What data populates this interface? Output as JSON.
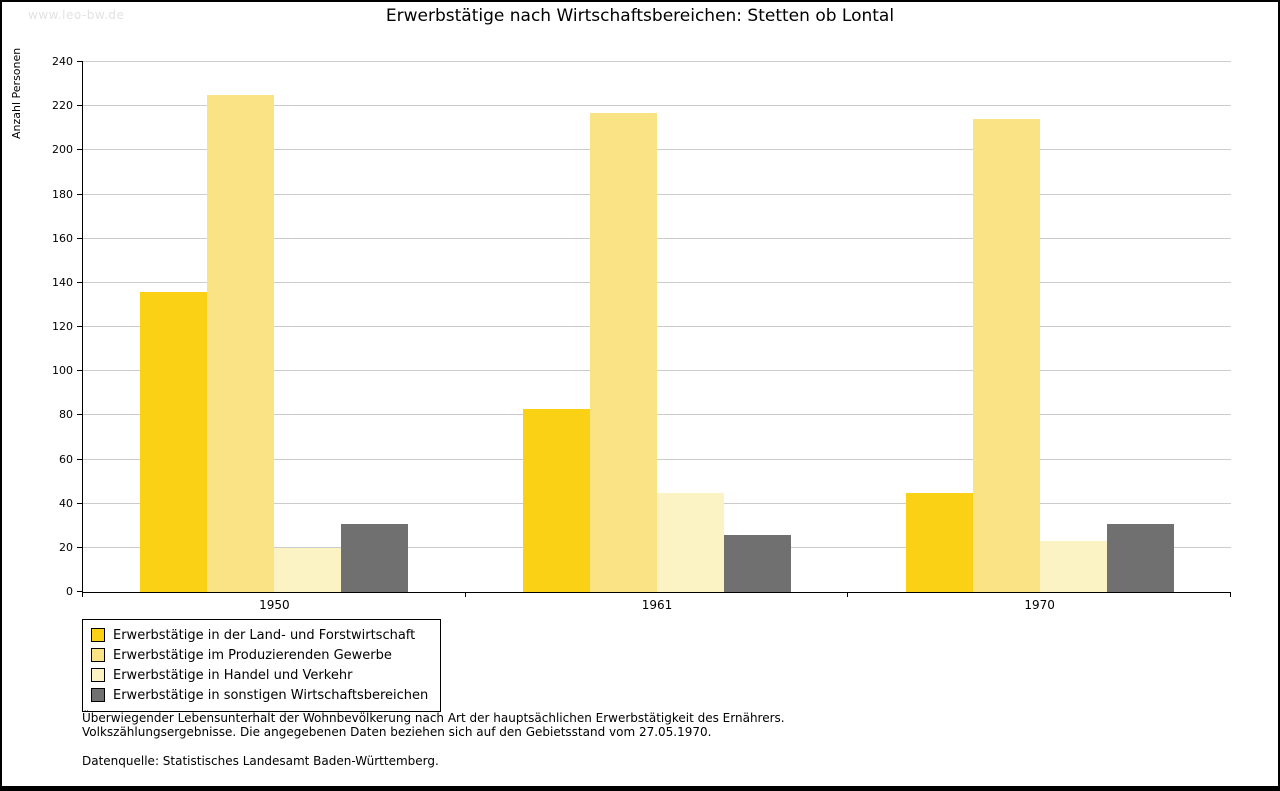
{
  "watermark": "www.leo-bw.de",
  "title": "Erwerbstätige nach Wirtschaftsbereichen: Stetten ob Lontal",
  "chart_data": {
    "type": "bar",
    "title": "Erwerbstätige nach Wirtschaftsbereichen: Stetten ob Lontal",
    "xlabel": "",
    "ylabel": "Anzahl Personen",
    "ylim": [
      0,
      240
    ],
    "ytick_step": 20,
    "grid": true,
    "legend_position": "bottom-left",
    "categories": [
      "1950",
      "1961",
      "1970"
    ],
    "series": [
      {
        "name": "Erwerbstätige in der Land- und Forstwirtschaft",
        "color": "#fbd116",
        "values": [
          136,
          83,
          45
        ]
      },
      {
        "name": "Erwerbstätige im Produzierenden Gewerbe",
        "color": "#fae384",
        "values": [
          225,
          217,
          214
        ]
      },
      {
        "name": "Erwerbstätige in Handel und Verkehr",
        "color": "#fcf3c4",
        "values": [
          20,
          45,
          23
        ]
      },
      {
        "name": "Erwerbstätige in sonstigen Wirtschaftsbereichen",
        "color": "#707070",
        "values": [
          31,
          26,
          31
        ]
      }
    ]
  },
  "footnotes": {
    "line1": "Überwiegender Lebensunterhalt der Wohnbevölkerung nach Art der hauptsächlichen Erwerbstätigkeit des Ernährers.",
    "line2": "Volkszählungsergebnisse. Die angegebenen Daten beziehen sich auf den Gebietsstand vom 27.05.1970.",
    "source": "Datenquelle: Statistisches Landesamt Baden-Württemberg."
  }
}
